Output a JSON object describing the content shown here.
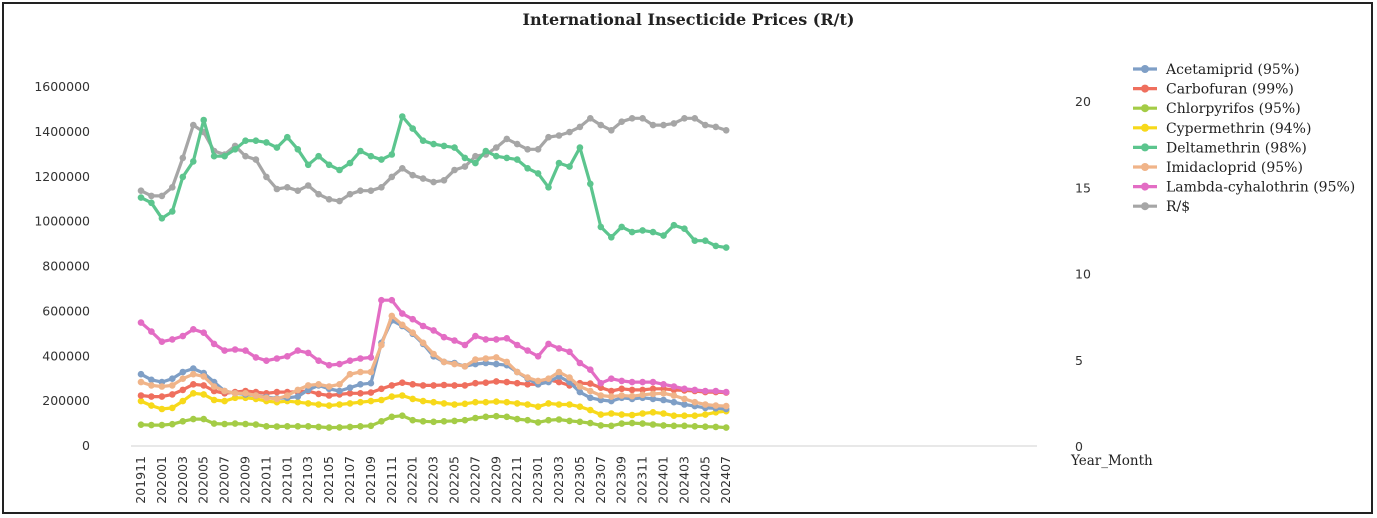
{
  "chart_data": {
    "type": "line",
    "title": "International Insecticide Prices (R/t)",
    "xlabel": "Year_Month",
    "ylabel": "",
    "y2label": "",
    "ylim": [
      0,
      1600000
    ],
    "y2lim": [
      0,
      20
    ],
    "yticks": [
      "0",
      "200000",
      "400000",
      "600000",
      "800000",
      "1000000",
      "1200000",
      "1400000",
      "1600000"
    ],
    "y2ticks": [
      "0",
      "5",
      "10",
      "15",
      "20"
    ],
    "grid": false,
    "legend_position": "right",
    "x": [
      "201911",
      "201912",
      "202001",
      "202002",
      "202003",
      "202004",
      "202005",
      "202006",
      "202007",
      "202008",
      "202009",
      "202010",
      "202011",
      "202012",
      "202101",
      "202102",
      "202103",
      "202104",
      "202105",
      "202106",
      "202107",
      "202108",
      "202109",
      "202110",
      "202111",
      "202112",
      "202201",
      "202202",
      "202203",
      "202204",
      "202205",
      "202206",
      "202207",
      "202208",
      "202209",
      "202210",
      "202211",
      "202212",
      "202301",
      "202302",
      "202303",
      "202304",
      "202305",
      "202306",
      "202307",
      "202308",
      "202309",
      "202310",
      "202311",
      "202312",
      "202401",
      "202402",
      "202403",
      "202404",
      "202405",
      "202406",
      "202407"
    ],
    "x_tick_labels": [
      "201911",
      "202001",
      "202003",
      "202005",
      "202007",
      "202009",
      "202011",
      "202101",
      "202103",
      "202105",
      "202107",
      "202109",
      "202111",
      "202201",
      "202203",
      "202205",
      "202207",
      "202209",
      "202211",
      "202301",
      "202303",
      "202305",
      "202307",
      "202309",
      "202311",
      "202401",
      "202403",
      "202405",
      "202407"
    ],
    "series": [
      {
        "name": "Acetamiprid (95%)",
        "color": "#7f9fc6",
        "axis": "left",
        "values": [
          320000,
          295000,
          285000,
          300000,
          330000,
          345000,
          325000,
          285000,
          245000,
          235000,
          230000,
          225000,
          218000,
          212000,
          215000,
          220000,
          250000,
          270000,
          255000,
          245000,
          260000,
          275000,
          280000,
          460000,
          560000,
          535000,
          500000,
          455000,
          400000,
          375000,
          370000,
          355000,
          365000,
          370000,
          365000,
          360000,
          330000,
          300000,
          275000,
          285000,
          310000,
          285000,
          240000,
          215000,
          205000,
          200000,
          215000,
          210000,
          215000,
          210000,
          205000,
          195000,
          185000,
          178000,
          170000,
          168000,
          165000
        ]
      },
      {
        "name": "Carbofuran (99%)",
        "color": "#ef6f5e",
        "axis": "left",
        "values": [
          225000,
          220000,
          220000,
          230000,
          250000,
          275000,
          270000,
          245000,
          235000,
          240000,
          245000,
          240000,
          235000,
          240000,
          240000,
          242000,
          245000,
          232000,
          225000,
          230000,
          235000,
          235000,
          238000,
          255000,
          270000,
          282000,
          275000,
          270000,
          270000,
          272000,
          270000,
          270000,
          280000,
          282000,
          288000,
          285000,
          280000,
          275000,
          275000,
          295000,
          285000,
          270000,
          280000,
          278000,
          260000,
          245000,
          255000,
          250000,
          250000,
          255000,
          255000,
          250000,
          248000,
          245000,
          240000,
          240000,
          238000
        ]
      },
      {
        "name": "Chlorpyrifos (95%)",
        "color": "#a4cc46",
        "axis": "left",
        "values": [
          95000,
          93000,
          93000,
          97000,
          110000,
          120000,
          120000,
          100000,
          98000,
          100000,
          98000,
          96000,
          88000,
          87000,
          88000,
          88000,
          88000,
          85000,
          82000,
          83000,
          85000,
          88000,
          90000,
          110000,
          130000,
          135000,
          115000,
          110000,
          108000,
          110000,
          112000,
          115000,
          125000,
          130000,
          133000,
          130000,
          120000,
          115000,
          105000,
          115000,
          118000,
          112000,
          108000,
          102000,
          92000,
          90000,
          100000,
          102000,
          100000,
          96000,
          92000,
          90000,
          90000,
          88000,
          86000,
          85000,
          82000
        ]
      },
      {
        "name": "Cypermethrin (94%)",
        "color": "#f7d91a",
        "axis": "left",
        "values": [
          200000,
          180000,
          165000,
          170000,
          200000,
          235000,
          230000,
          205000,
          200000,
          215000,
          215000,
          210000,
          200000,
          195000,
          200000,
          195000,
          190000,
          185000,
          180000,
          185000,
          190000,
          195000,
          200000,
          205000,
          220000,
          225000,
          210000,
          200000,
          195000,
          190000,
          185000,
          188000,
          195000,
          195000,
          198000,
          195000,
          190000,
          185000,
          175000,
          190000,
          185000,
          185000,
          175000,
          160000,
          140000,
          145000,
          140000,
          138000,
          145000,
          150000,
          145000,
          135000,
          135000,
          135000,
          140000,
          150000,
          155000
        ]
      },
      {
        "name": "Deltamethrin (98%)",
        "color": "#5cc58e",
        "axis": "right",
        "values": [
          14.4,
          14.1,
          13.2,
          13.6,
          15.6,
          16.5,
          18.9,
          16.8,
          16.8,
          17.2,
          17.7,
          17.7,
          17.6,
          17.3,
          17.9,
          17.2,
          16.3,
          16.8,
          16.3,
          16.0,
          16.4,
          17.1,
          16.8,
          16.6,
          16.9,
          19.1,
          18.4,
          17.7,
          17.5,
          17.4,
          17.3,
          16.7,
          16.4,
          17.1,
          16.8,
          16.7,
          16.6,
          16.1,
          15.8,
          15.0,
          16.4,
          16.2,
          17.3,
          15.2,
          12.7,
          12.1,
          12.7,
          12.4,
          12.5,
          12.4,
          12.2,
          12.8,
          12.6,
          11.9,
          11.9,
          11.6,
          11.5
        ]
      },
      {
        "name": "Imidacloprid (95%)",
        "color": "#f0b489",
        "axis": "left",
        "values": [
          285000,
          270000,
          265000,
          270000,
          300000,
          320000,
          310000,
          265000,
          245000,
          235000,
          235000,
          225000,
          215000,
          210000,
          225000,
          250000,
          270000,
          275000,
          265000,
          275000,
          320000,
          330000,
          330000,
          450000,
          580000,
          540000,
          505000,
          460000,
          410000,
          375000,
          365000,
          355000,
          385000,
          390000,
          395000,
          375000,
          330000,
          305000,
          290000,
          300000,
          330000,
          305000,
          265000,
          245000,
          225000,
          220000,
          225000,
          222000,
          228000,
          232000,
          235000,
          225000,
          210000,
          195000,
          185000,
          180000,
          178000
        ]
      },
      {
        "name": "Lambda-cyhalothrin (95%)",
        "color": "#e36dc4",
        "axis": "left",
        "values": [
          550000,
          510000,
          465000,
          475000,
          490000,
          520000,
          505000,
          455000,
          425000,
          430000,
          425000,
          395000,
          380000,
          390000,
          400000,
          425000,
          415000,
          380000,
          360000,
          365000,
          380000,
          390000,
          395000,
          650000,
          650000,
          590000,
          565000,
          535000,
          515000,
          485000,
          470000,
          450000,
          490000,
          475000,
          475000,
          480000,
          450000,
          425000,
          400000,
          455000,
          435000,
          420000,
          370000,
          340000,
          280000,
          300000,
          290000,
          285000,
          285000,
          285000,
          275000,
          265000,
          255000,
          250000,
          245000,
          245000,
          240000
        ]
      },
      {
        "name": "R/$",
        "color": "#a6a6a6",
        "axis": "right",
        "values": [
          14.8,
          14.5,
          14.5,
          15.0,
          16.7,
          18.6,
          18.2,
          17.1,
          16.9,
          17.4,
          16.8,
          16.6,
          15.6,
          14.9,
          15.0,
          14.8,
          15.1,
          14.6,
          14.3,
          14.2,
          14.6,
          14.8,
          14.8,
          15.0,
          15.6,
          16.1,
          15.7,
          15.5,
          15.3,
          15.4,
          16.0,
          16.2,
          16.8,
          16.9,
          17.3,
          17.8,
          17.5,
          17.2,
          17.2,
          17.9,
          18.0,
          18.2,
          18.5,
          19.0,
          18.6,
          18.3,
          18.8,
          19.0,
          19.0,
          18.6,
          18.6,
          18.7,
          19.0,
          19.0,
          18.6,
          18.5,
          18.3
        ]
      }
    ]
  }
}
